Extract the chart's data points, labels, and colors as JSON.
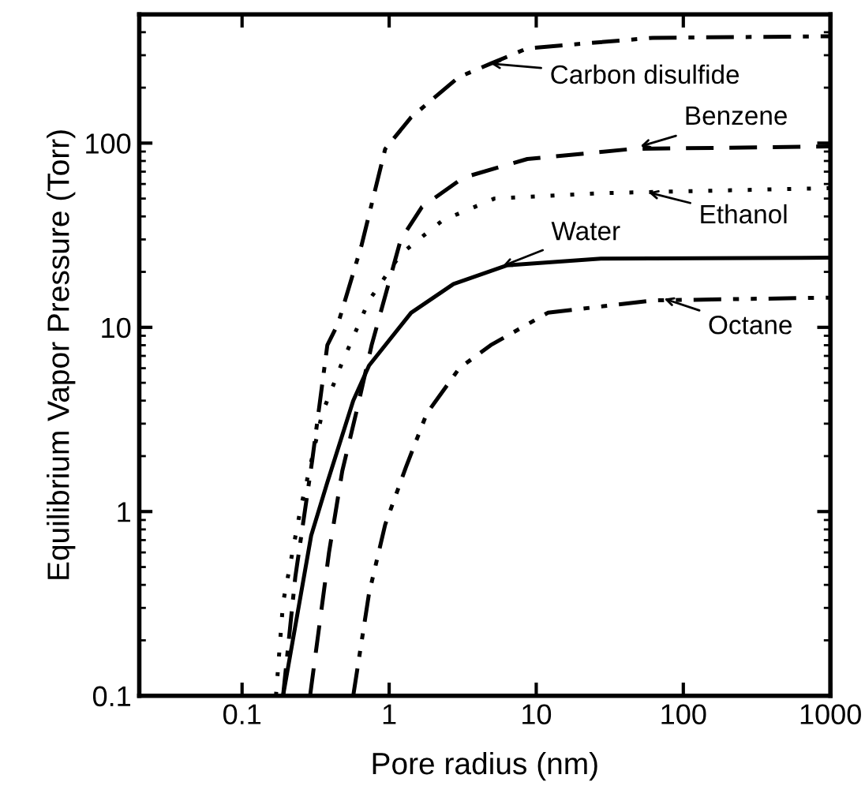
{
  "chart_data": {
    "type": "line",
    "xlabel": "Pore radius (nm)",
    "ylabel": "Equilibrium Vapor Pressure (Torr)",
    "log": "xy",
    "grid": false,
    "marker": "none",
    "xlim": [
      0.02,
      1000
    ],
    "xticks": [
      0.1,
      1,
      10,
      100,
      1000
    ],
    "ylim": [
      0.1,
      500
    ],
    "yticks": [
      0.1,
      1,
      10,
      100
    ],
    "series": [
      {
        "color": "#000000",
        "line_style": "dashdot",
        "x": [
          0.19,
          0.23,
          0.3,
          0.38,
          0.45,
          0.65,
          0.94,
          1.41,
          2.97,
          4.9,
          8.7,
          62,
          1000
        ],
        "values": [
          0.1,
          0.44,
          1.9,
          8.0,
          10.5,
          28,
          93,
          138,
          228,
          270,
          327,
          373,
          380
        ]
      },
      {
        "color": "#000000",
        "line_style": "dashed",
        "x": [
          0.29,
          0.39,
          0.48,
          0.62,
          0.76,
          1.2,
          1.67,
          3.2,
          8.7,
          45,
          1000
        ],
        "values": [
          0.1,
          0.6,
          1.66,
          3.9,
          8,
          30,
          45,
          65,
          82,
          93,
          96
        ]
      },
      {
        "color": "#000000",
        "line_style": "dotted",
        "x": [
          0.17,
          0.19,
          0.25,
          0.35,
          0.47,
          0.73,
          1.2,
          2.3,
          5.2,
          27,
          1000
        ],
        "values": [
          0.1,
          0.32,
          1.04,
          3.4,
          6.2,
          14,
          25,
          38,
          50,
          53.5,
          57
        ]
      },
      {
        "color": "#000000",
        "line_style": "solid",
        "x": [
          0.19,
          0.295,
          0.38,
          0.57,
          0.73,
          1.41,
          2.74,
          6.3,
          27.5,
          1000
        ],
        "values": [
          0.1,
          0.74,
          1.44,
          4.0,
          6.2,
          12,
          17.2,
          21.7,
          23.6,
          23.9
        ]
      },
      {
        "color": "#000000",
        "line_style": "dashdotdot",
        "x": [
          0.57,
          0.73,
          0.94,
          1.3,
          1.8,
          3,
          4.9,
          12,
          62,
          1000
        ],
        "values": [
          0.1,
          0.36,
          0.85,
          1.74,
          3.4,
          6,
          8,
          12,
          14,
          14.5
        ]
      }
    ],
    "annotations": [
      {
        "text": "Carbon disulfide",
        "x": 4.9,
        "y": 270
      },
      {
        "text": "Benzene",
        "x": 51,
        "y": 96
      },
      {
        "text": "Ethanol",
        "x": 58,
        "y": 54
      },
      {
        "text": "Water",
        "x": 5.9,
        "y": 21.5
      },
      {
        "text": "Octane",
        "x": 74,
        "y": 14.3
      }
    ]
  }
}
